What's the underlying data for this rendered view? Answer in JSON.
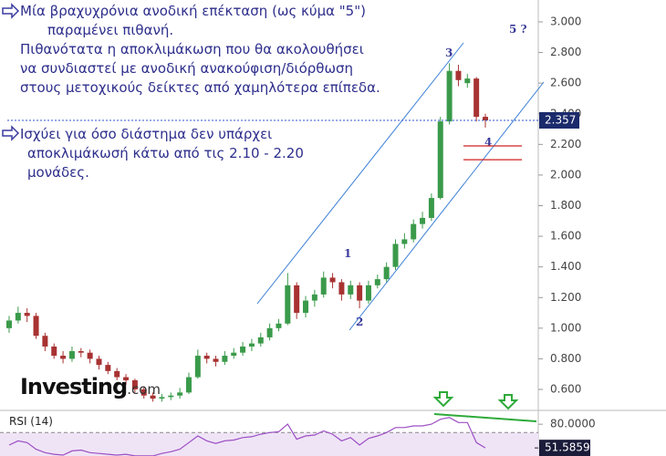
{
  "chart_data": {
    "type": "candlestick",
    "notes": [
      [
        "Μία βραχυχρόνια ανοδική επέκταση (ως κύμα \"5\")",
        "παραμένει πιθανή.",
        "Πιθανότατα η αποκλιμάκωση που θα ακολουθήσει",
        "να συνδιαστεί με ανοδική ανακούφιση/διόρθωση",
        "στους μετοχικούς δείκτες από χαμηλότερα επίπεδα."
      ],
      [
        "Ισχύει για όσο διάστημα δεν υπάρχει",
        "αποκλιμάκωσή κάτω από τις 2.10 - 2.20",
        "μονάδες."
      ]
    ],
    "wave_labels": [
      "1",
      "2",
      "3",
      "4",
      "5 ?"
    ],
    "logo": {
      "name": "Investing",
      "suffix": ".com"
    },
    "up_color": "#3a9a4a",
    "down_color": "#a83232",
    "candles": [
      [
        1.0,
        1.08,
        0.97,
        1.05
      ],
      [
        1.05,
        1.14,
        1.03,
        1.1
      ],
      [
        1.1,
        1.13,
        1.04,
        1.08
      ],
      [
        1.08,
        1.1,
        0.93,
        0.95
      ],
      [
        0.95,
        0.97,
        0.85,
        0.88
      ],
      [
        0.88,
        0.9,
        0.8,
        0.82
      ],
      [
        0.82,
        0.85,
        0.77,
        0.8
      ],
      [
        0.8,
        0.88,
        0.78,
        0.85
      ],
      [
        0.85,
        0.87,
        0.81,
        0.84
      ],
      [
        0.84,
        0.86,
        0.77,
        0.8
      ],
      [
        0.8,
        0.82,
        0.73,
        0.76
      ],
      [
        0.76,
        0.78,
        0.7,
        0.72
      ],
      [
        0.72,
        0.74,
        0.66,
        0.68
      ],
      [
        0.68,
        0.7,
        0.63,
        0.66
      ],
      [
        0.66,
        0.67,
        0.58,
        0.6
      ],
      [
        0.6,
        0.62,
        0.54,
        0.56
      ],
      [
        0.56,
        0.58,
        0.52,
        0.54
      ],
      [
        0.54,
        0.57,
        0.52,
        0.55
      ],
      [
        0.55,
        0.58,
        0.53,
        0.56
      ],
      [
        0.56,
        0.61,
        0.54,
        0.58
      ],
      [
        0.58,
        0.71,
        0.57,
        0.68
      ],
      [
        0.68,
        0.86,
        0.67,
        0.82
      ],
      [
        0.82,
        0.84,
        0.77,
        0.8
      ],
      [
        0.8,
        0.82,
        0.75,
        0.78
      ],
      [
        0.78,
        0.85,
        0.76,
        0.82
      ],
      [
        0.82,
        0.87,
        0.8,
        0.84
      ],
      [
        0.84,
        0.91,
        0.82,
        0.88
      ],
      [
        0.88,
        0.93,
        0.85,
        0.9
      ],
      [
        0.9,
        0.97,
        0.88,
        0.94
      ],
      [
        0.94,
        1.03,
        0.92,
        1.0
      ],
      [
        1.0,
        1.06,
        0.98,
        1.03
      ],
      [
        1.03,
        1.36,
        1.02,
        1.28
      ],
      [
        1.28,
        1.3,
        1.06,
        1.1
      ],
      [
        1.1,
        1.21,
        1.07,
        1.18
      ],
      [
        1.18,
        1.25,
        1.14,
        1.22
      ],
      [
        1.22,
        1.37,
        1.2,
        1.33
      ],
      [
        1.33,
        1.36,
        1.26,
        1.3
      ],
      [
        1.3,
        1.32,
        1.18,
        1.22
      ],
      [
        1.22,
        1.31,
        1.19,
        1.28
      ],
      [
        1.28,
        1.3,
        1.13,
        1.18
      ],
      [
        1.18,
        1.31,
        1.16,
        1.28
      ],
      [
        1.28,
        1.35,
        1.26,
        1.32
      ],
      [
        1.32,
        1.43,
        1.3,
        1.4
      ],
      [
        1.4,
        1.58,
        1.38,
        1.55
      ],
      [
        1.55,
        1.62,
        1.52,
        1.58
      ],
      [
        1.58,
        1.71,
        1.56,
        1.68
      ],
      [
        1.68,
        1.76,
        1.65,
        1.72
      ],
      [
        1.72,
        1.88,
        1.7,
        1.85
      ],
      [
        1.85,
        2.38,
        1.84,
        2.35
      ],
      [
        2.35,
        2.73,
        2.33,
        2.68
      ],
      [
        2.68,
        2.72,
        2.58,
        2.62
      ],
      [
        2.6,
        2.66,
        2.57,
        2.63
      ],
      [
        2.63,
        2.64,
        2.35,
        2.38
      ],
      [
        2.38,
        2.4,
        2.31,
        2.357
      ]
    ],
    "ylim": [
      0.6,
      3.0
    ],
    "yticks": [
      {
        "value": 3.0,
        "label": "3.000"
      },
      {
        "value": 2.8,
        "label": "2.800"
      },
      {
        "value": 2.6,
        "label": "2.600"
      },
      {
        "value": 2.4,
        "label": "2.400"
      },
      {
        "value": 2.2,
        "label": "2.200"
      },
      {
        "value": 2.0,
        "label": "2.000"
      },
      {
        "value": 1.8,
        "label": "1.800"
      },
      {
        "value": 1.6,
        "label": "1.600"
      },
      {
        "value": 1.4,
        "label": "1.400"
      },
      {
        "value": 1.2,
        "label": "1.200"
      },
      {
        "value": 1.0,
        "label": "1.000"
      },
      {
        "value": 0.8,
        "label": "0.800"
      },
      {
        "value": 0.6,
        "label": "0.600"
      }
    ],
    "current_price": {
      "value": 2.357,
      "label": "2.357"
    },
    "support_levels": [
      2.19,
      2.1
    ],
    "rsi": {
      "title": "RSI (14)",
      "color": "#9c4fc4",
      "ylim": [
        40,
        90
      ],
      "overbought": 70,
      "yticks": [
        {
          "value": 80,
          "label": "80.0000"
        }
      ],
      "values": [
        55,
        60,
        58,
        50,
        46,
        44,
        43,
        48,
        49,
        46,
        45,
        44,
        43,
        44,
        42,
        42,
        42,
        45,
        47,
        50,
        58,
        66,
        60,
        57,
        60,
        61,
        64,
        65,
        68,
        70,
        71,
        80,
        62,
        66,
        67,
        72,
        68,
        60,
        64,
        55,
        63,
        66,
        70,
        76,
        76,
        78,
        78,
        80,
        86,
        88,
        82,
        82,
        58,
        51.5859
      ],
      "current": {
        "value": 51.5859,
        "label": "51.5859"
      }
    }
  }
}
